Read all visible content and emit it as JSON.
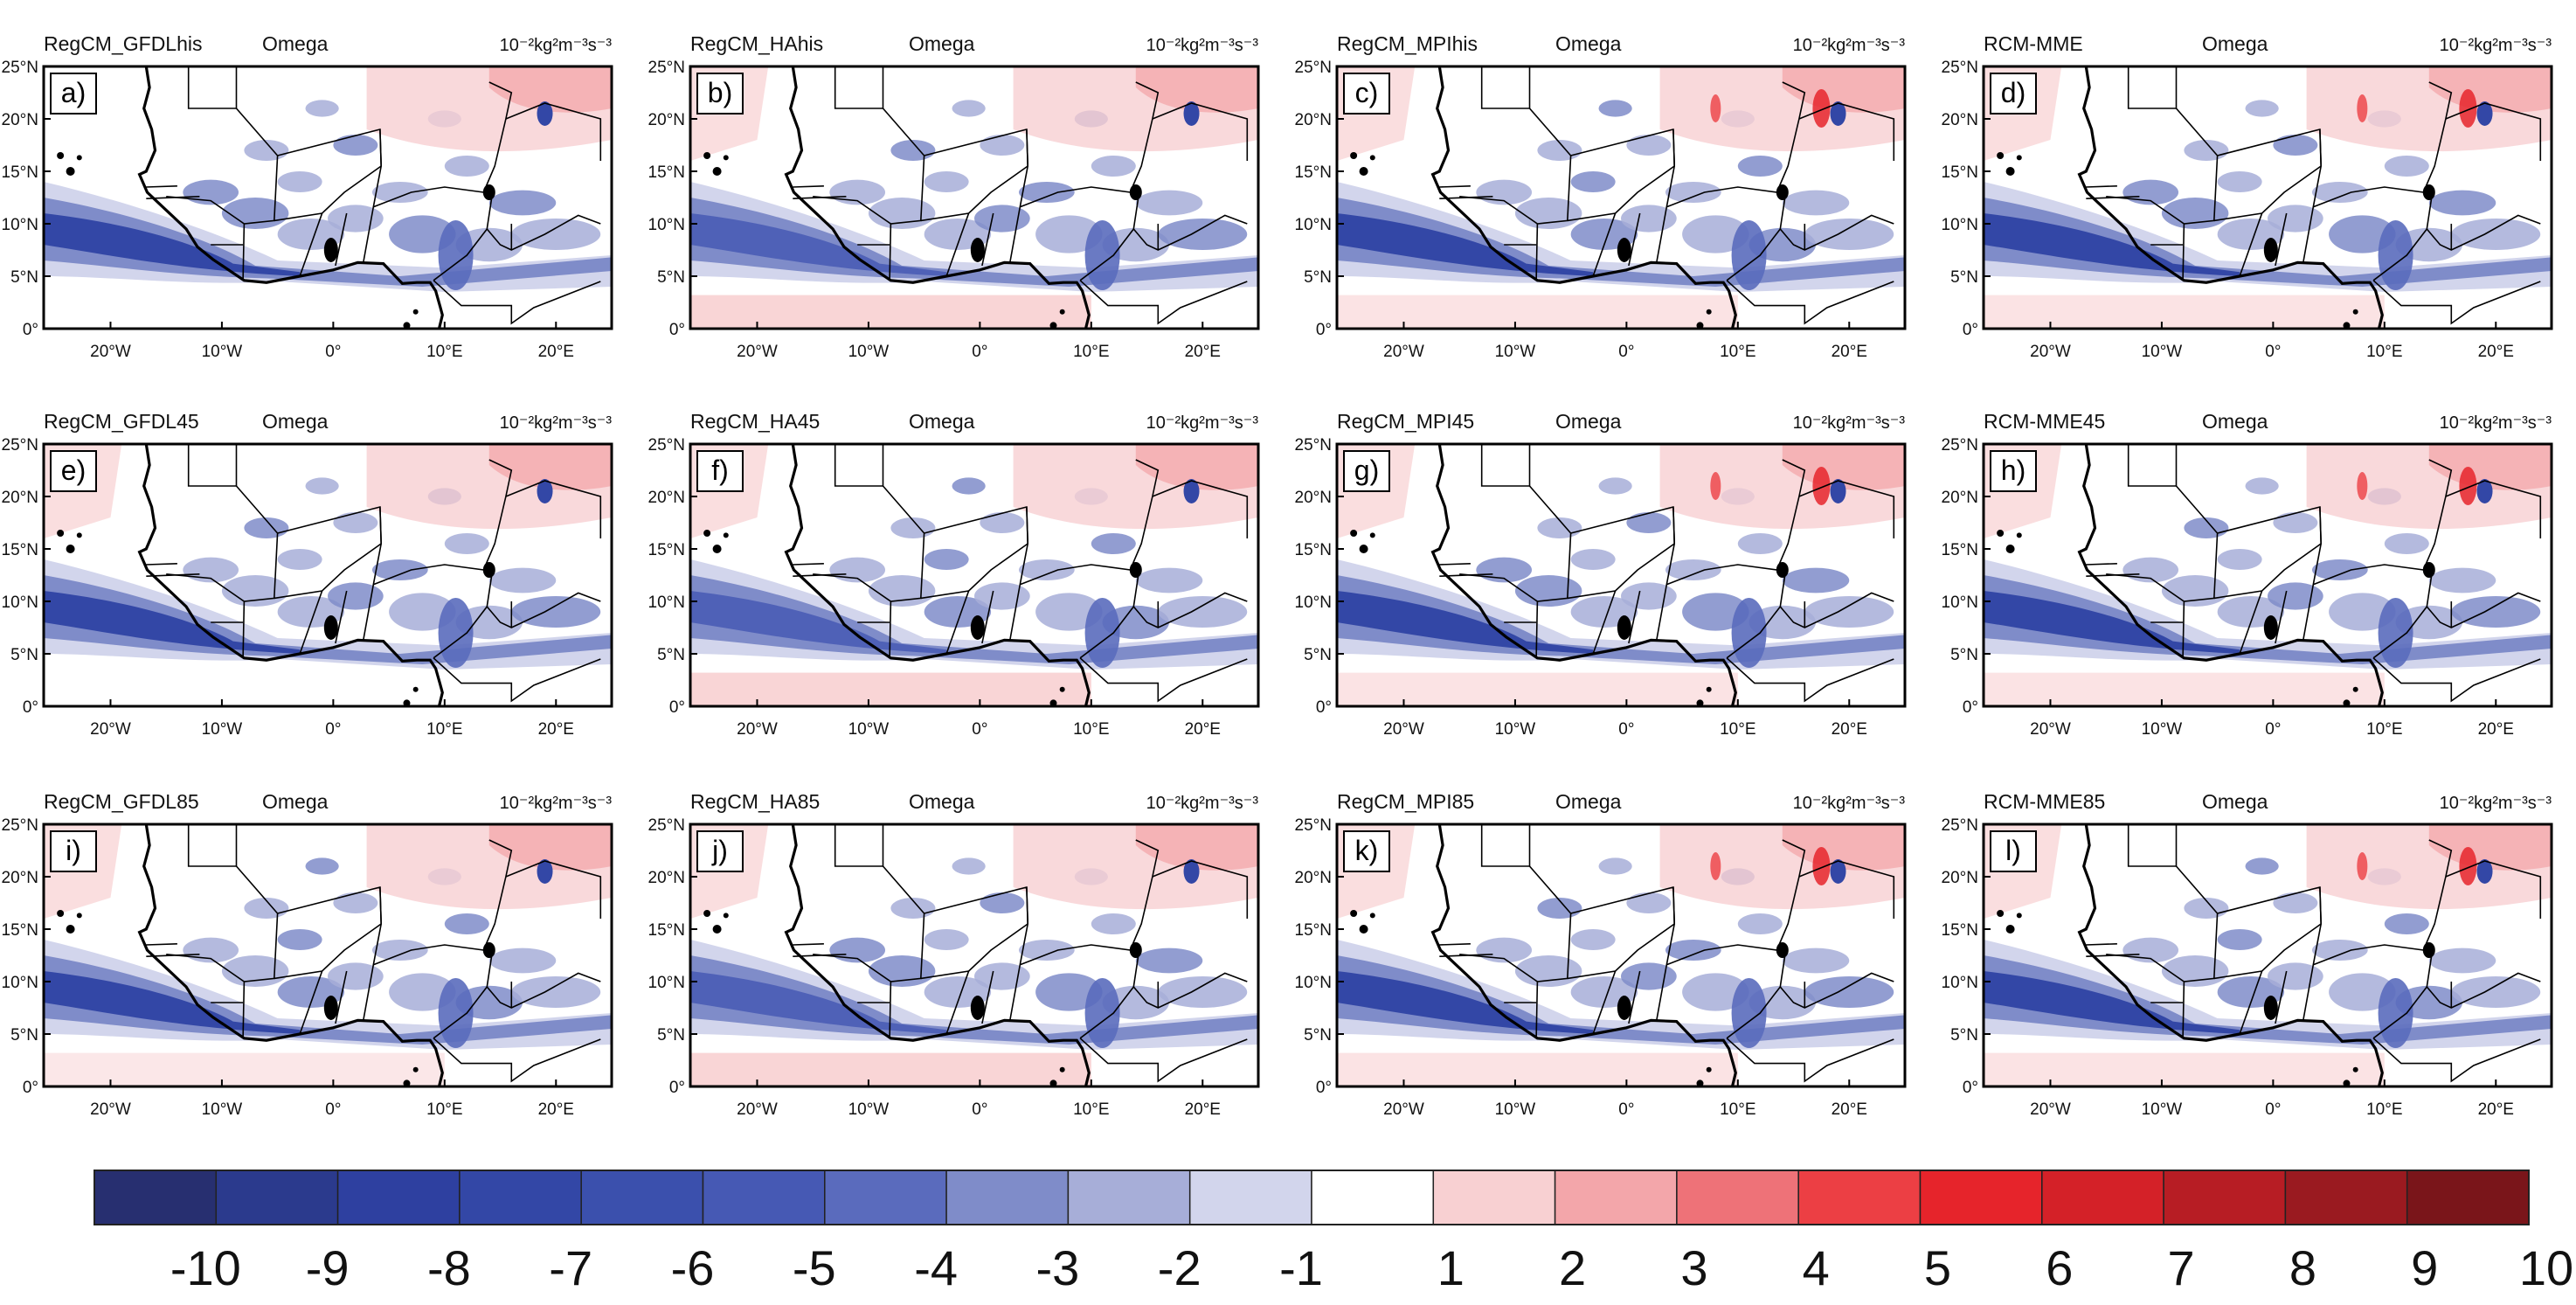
{
  "panels": [
    {
      "letter": "a)",
      "model": "RegCM_GFDLhis",
      "variable": "Omega",
      "units": "10⁻²kg²m⁻³s⁻³"
    },
    {
      "letter": "b)",
      "model": "RegCM_HAhis",
      "variable": "Omega",
      "units": "10⁻²kg²m⁻³s⁻³"
    },
    {
      "letter": "c)",
      "model": "RegCM_MPIhis",
      "variable": "Omega",
      "units": "10⁻²kg²m⁻³s⁻³"
    },
    {
      "letter": "d)",
      "model": "RCM-MME",
      "variable": "Omega",
      "units": "10⁻²kg²m⁻³s⁻³"
    },
    {
      "letter": "e)",
      "model": "RegCM_GFDL45",
      "variable": "Omega",
      "units": "10⁻²kg²m⁻³s⁻³"
    },
    {
      "letter": "f)",
      "model": "RegCM_HA45",
      "variable": "Omega",
      "units": "10⁻²kg²m⁻³s⁻³"
    },
    {
      "letter": "g)",
      "model": "RegCM_MPI45",
      "variable": "Omega",
      "units": "10⁻²kg²m⁻³s⁻³"
    },
    {
      "letter": "h)",
      "model": "RCM-MME45",
      "variable": "Omega",
      "units": "10⁻²kg²m⁻³s⁻³"
    },
    {
      "letter": "i)",
      "model": "RegCM_GFDL85",
      "variable": "Omega",
      "units": "10⁻²kg²m⁻³s⁻³"
    },
    {
      "letter": "j)",
      "model": "RegCM_HA85",
      "variable": "Omega",
      "units": "10⁻²kg²m⁻³s⁻³"
    },
    {
      "letter": "k)",
      "model": "RegCM_MPI85",
      "variable": "Omega",
      "units": "10⁻²kg²m⁻³s⁻³"
    },
    {
      "letter": "l)",
      "model": "RCM-MME85",
      "variable": "Omega",
      "units": "10⁻²kg²m⁻³s⁻³"
    }
  ],
  "lat_labels": [
    "25°N",
    "20°N",
    "15°N",
    "10°N",
    "5°N",
    "0°"
  ],
  "lon_labels": [
    "20°W",
    "10°W",
    "0°",
    "10°E",
    "20°E"
  ],
  "colorbar": {
    "colors": [
      "#272f70",
      "#2b3a8d",
      "#2e40a0",
      "#3347a6",
      "#3b50ad",
      "#4659b4",
      "#5a6bbd",
      "#7f8cc9",
      "#a7aed8",
      "#d2d5ec",
      "#ffffff",
      "#f8d0d2",
      "#f3a6aa",
      "#ee7278",
      "#ec3f44",
      "#e6242b",
      "#d42128",
      "#b71d24",
      "#9a1a20",
      "#7a151a"
    ],
    "labels": [
      "-10",
      "-9",
      "-8",
      "-7",
      "-6",
      "-5",
      "-4",
      "-3",
      "-2",
      "-1",
      "1",
      "2",
      "3",
      "4",
      "5",
      "6",
      "7",
      "8",
      "9",
      "10"
    ]
  }
}
